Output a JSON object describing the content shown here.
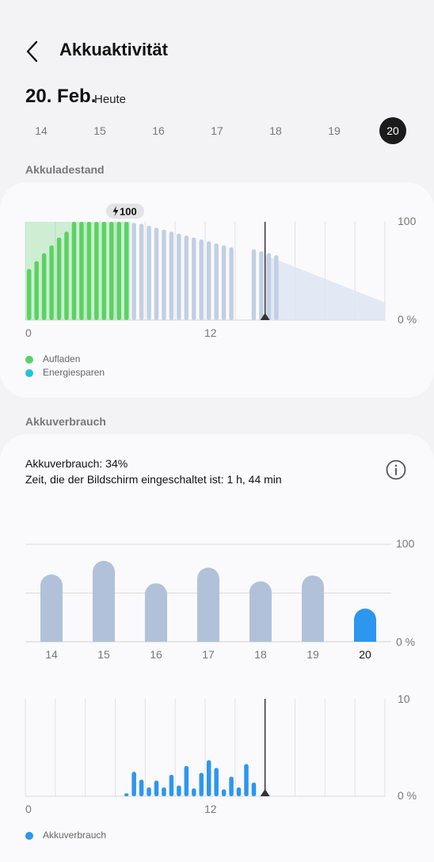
{
  "header": {
    "title": "Akkuaktivität",
    "back_icon": "chevron-left-icon"
  },
  "date": {
    "main": "20. Feb.",
    "sub": "Heute"
  },
  "day_selector": [
    "14",
    "15",
    "16",
    "17",
    "18",
    "19",
    "20"
  ],
  "selected_day": "20",
  "battery_level": {
    "section_label": "Akkuladestand",
    "badge": "100",
    "badge_icon": "lightning-icon",
    "y_max_label": "100",
    "y_min_label": "0 %",
    "x_labels": [
      "0",
      "12"
    ],
    "legend": [
      {
        "label": "Aufladen",
        "color": "#5bd264"
      },
      {
        "label": "Energiesparen",
        "color": "#20c4dd"
      }
    ]
  },
  "battery_usage": {
    "section_label": "Akkuverbrauch",
    "usage_line": "Akkuverbrauch: 34%",
    "screen_time_line": "Zeit, die der Bildschirm eingeschaltet ist: 1 h, 44 min",
    "info_icon": "info-icon"
  },
  "colors": {
    "charging": "#5bd264",
    "battery_bar": "#c3cfe2",
    "usage_bar": "#b1c1da",
    "usage_today": "#2d96ee",
    "hourly_bar": "#2d96ee",
    "power_saving": "#20c4dd"
  },
  "chart_data": [
    {
      "type": "bar",
      "title": "",
      "y_labels": [
        "100",
        "0 %"
      ],
      "x_labels": [
        "0",
        "12"
      ],
      "ylim": [
        0,
        100
      ],
      "series": [
        {
          "name": "Aufladen",
          "bars": [
            {
              "x": 0.25,
              "value": 52
            },
            {
              "x": 0.75,
              "value": 60
            },
            {
              "x": 1.25,
              "value": 68
            },
            {
              "x": 1.75,
              "value": 76
            },
            {
              "x": 2.25,
              "value": 84
            },
            {
              "x": 2.75,
              "value": 90
            },
            {
              "x": 3.25,
              "value": 100
            },
            {
              "x": 3.75,
              "value": 100
            },
            {
              "x": 4.25,
              "value": 100
            },
            {
              "x": 4.75,
              "value": 100
            },
            {
              "x": 5.25,
              "value": 100
            },
            {
              "x": 5.75,
              "value": 100
            },
            {
              "x": 6.25,
              "value": 100
            },
            {
              "x": 6.75,
              "value": 100
            }
          ]
        },
        {
          "name": "",
          "bars": [
            {
              "x": 7.25,
              "value": 99
            },
            {
              "x": 7.75,
              "value": 98
            },
            {
              "x": 8.25,
              "value": 96
            },
            {
              "x": 8.75,
              "value": 94
            },
            {
              "x": 9.25,
              "value": 92
            },
            {
              "x": 9.75,
              "value": 90
            },
            {
              "x": 10.25,
              "value": 88
            },
            {
              "x": 10.75,
              "value": 86
            },
            {
              "x": 11.25,
              "value": 84
            },
            {
              "x": 11.75,
              "value": 82
            },
            {
              "x": 12.25,
              "value": 80
            },
            {
              "x": 12.75,
              "value": 78
            },
            {
              "x": 13.25,
              "value": 76
            },
            {
              "x": 13.75,
              "value": 74
            },
            {
              "x": 15.25,
              "value": 72
            },
            {
              "x": 15.75,
              "value": 70
            },
            {
              "x": 16.25,
              "value": 68
            },
            {
              "x": 16.75,
              "value": 66
            }
          ]
        }
      ],
      "charging_region": [
        0,
        7
      ],
      "now_hour": 16,
      "forecast": {
        "from": [
          16,
          66
        ],
        "to": [
          24,
          18
        ]
      },
      "xlim": [
        0,
        24
      ]
    },
    {
      "type": "bar",
      "title": "",
      "categories": [
        "14",
        "15",
        "16",
        "17",
        "18",
        "19",
        "20"
      ],
      "values": [
        69,
        83,
        60,
        76,
        62,
        68,
        34
      ],
      "ylim": [
        0,
        100
      ],
      "y_labels": [
        "100",
        "0 %"
      ],
      "highlight": "20"
    },
    {
      "type": "bar",
      "title": "",
      "x_labels": [
        "0",
        "12"
      ],
      "y_labels": [
        "10",
        "0 %"
      ],
      "ylim": [
        0,
        10
      ],
      "xlim": [
        0,
        24
      ],
      "now_hour": 16,
      "series": [
        {
          "name": "Akkuverbrauch",
          "bars": [
            {
              "x": 6.75,
              "value": 0.3
            },
            {
              "x": 7.25,
              "value": 2.5
            },
            {
              "x": 7.75,
              "value": 1.7
            },
            {
              "x": 8.25,
              "value": 0.9
            },
            {
              "x": 8.75,
              "value": 1.6
            },
            {
              "x": 9.25,
              "value": 0.9
            },
            {
              "x": 9.75,
              "value": 2.2
            },
            {
              "x": 10.25,
              "value": 1.1
            },
            {
              "x": 10.75,
              "value": 3.1
            },
            {
              "x": 11.25,
              "value": 0.8
            },
            {
              "x": 11.75,
              "value": 2.4
            },
            {
              "x": 12.25,
              "value": 3.7
            },
            {
              "x": 12.75,
              "value": 2.9
            },
            {
              "x": 13.25,
              "value": 0.7
            },
            {
              "x": 13.75,
              "value": 2.0
            },
            {
              "x": 14.25,
              "value": 0.9
            },
            {
              "x": 14.75,
              "value": 3.3
            },
            {
              "x": 15.25,
              "value": 1.4
            }
          ]
        }
      ]
    }
  ]
}
